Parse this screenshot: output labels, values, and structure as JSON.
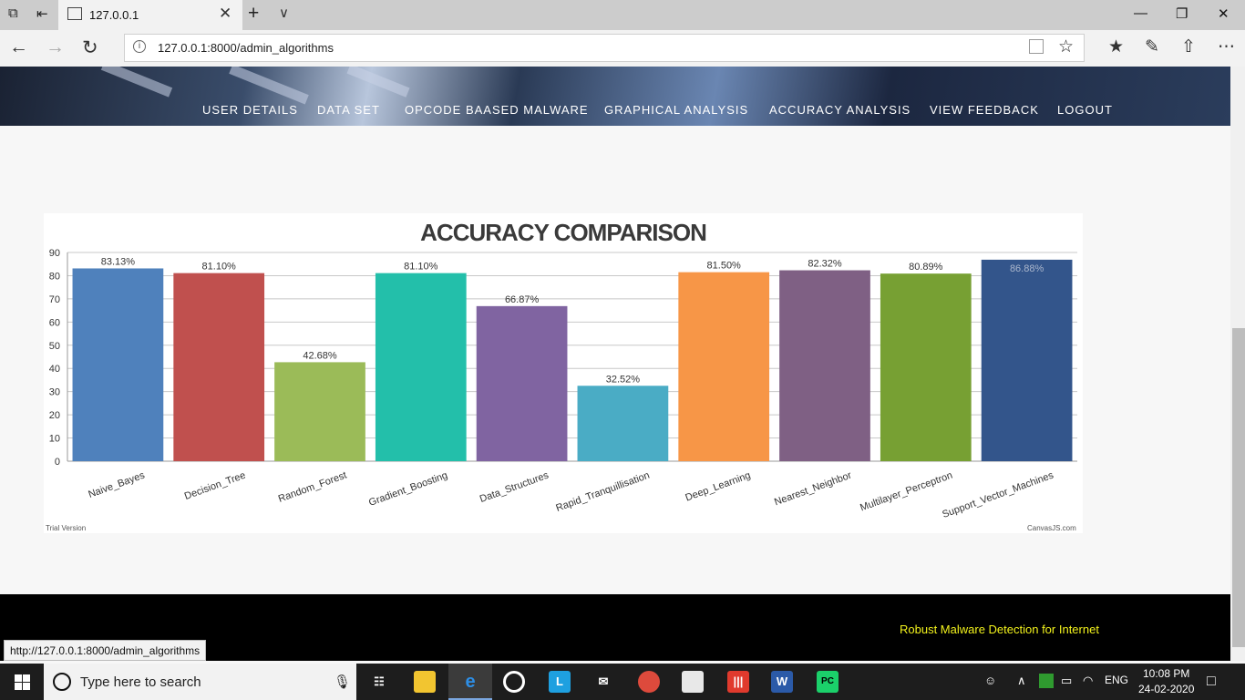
{
  "browser": {
    "tab_title": "127.0.0.1",
    "address": "127.0.0.1:8000/admin_algorithms",
    "status_url": "http://127.0.0.1:8000/admin_algorithms"
  },
  "menu": {
    "items": [
      "USER DETAILS",
      "DATA SET",
      "OPCODE BAASED MALWARE",
      "GRAPHICAL ANALYSIS",
      "ACCURACY ANALYSIS",
      "VIEW FEEDBACK",
      "LOGOUT"
    ]
  },
  "chart_data": {
    "type": "bar",
    "title": "ACCURACY COMPARISON",
    "categories": [
      "Naive_Bayes",
      "Decision_Tree",
      "Random_Forest",
      "Gradient_Boosting",
      "Data_Structures",
      "Rapid_Tranquillisation",
      "Deep_Learning",
      "Nearest_Neighbor",
      "Multilayer_Perceptron",
      "Support_Vector_Machines"
    ],
    "values": [
      83.13,
      81.1,
      42.68,
      81.1,
      66.87,
      32.52,
      81.5,
      82.32,
      80.89,
      86.88
    ],
    "data_labels": [
      "83.13%",
      "81.10%",
      "42.68%",
      "81.10%",
      "66.87%",
      "32.52%",
      "81.50%",
      "82.32%",
      "80.89%",
      "86.88%"
    ],
    "colors": [
      "#4f81bc",
      "#c0504e",
      "#9bbb58",
      "#23bfaa",
      "#8064a1",
      "#4aacc5",
      "#f79647",
      "#7f6084",
      "#77a033",
      "#33558b"
    ],
    "ylim": [
      0,
      90
    ],
    "yticks": [
      0,
      10,
      20,
      30,
      40,
      50,
      60,
      70,
      80,
      90
    ],
    "grid": true,
    "legend": false,
    "watermark_left": "Trial Version",
    "watermark_right": "CanvasJS.com"
  },
  "footer": {
    "text": "Robust Malware Detection for Internet"
  },
  "taskbar": {
    "search_placeholder": "Type here to search",
    "language": "ENG",
    "time": "10:08 PM",
    "date": "24-02-2020"
  }
}
